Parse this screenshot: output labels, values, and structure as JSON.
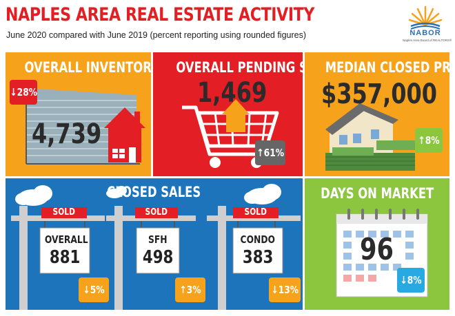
{
  "header": {
    "title": "NAPLES AREA REAL ESTATE ACTIVITY",
    "subtitle": "June 2020 compared with June 2019 (percent reporting using rounded figures)",
    "logo_name": "NABOR",
    "logo_sub": "Naples Area Board of REALTORS®"
  },
  "inventory": {
    "title": "OVERALL INVENTORY",
    "value": "4,739",
    "change": "↓28%"
  },
  "pending": {
    "title": "OVERALL PENDING SALES",
    "value": "1,469",
    "change": "↑61%"
  },
  "median": {
    "title": "MEDIAN CLOSED PRICE",
    "value": "$357,000",
    "change": "↑8%"
  },
  "closed": {
    "title": "CLOSED SALES",
    "signs": [
      {
        "label": "SOLD",
        "name": "OVERALL",
        "value": "881",
        "change": "↓5%"
      },
      {
        "label": "SOLD",
        "name": "SFH",
        "value": "498",
        "change": "↑3%"
      },
      {
        "label": "SOLD",
        "name": "CONDO",
        "value": "383",
        "change": "↓13%"
      }
    ]
  },
  "dom": {
    "title": "DAYS ON MARKET",
    "value": "96",
    "change": "↓8%"
  },
  "colors": {
    "red": "#e31e24",
    "orange": "#f7a21b",
    "blue": "#1d74bb",
    "green": "#8cc63f",
    "darkred": "#b71c1c"
  }
}
